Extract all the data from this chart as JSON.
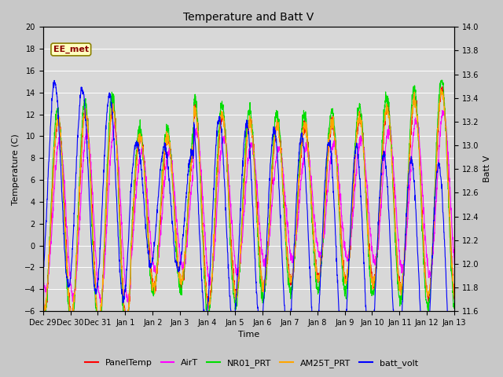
{
  "title": "Temperature and Batt V",
  "xlabel": "Time",
  "ylabel_left": "Temperature (C)",
  "ylabel_right": "Batt V",
  "annotation": "EE_met",
  "annotation_fg": "#8B0000",
  "annotation_bg": "#FFFFC0",
  "annotation_edge": "#8B8000",
  "xlim": [
    0,
    15
  ],
  "ylim_left": [
    -6,
    20
  ],
  "ylim_right": [
    11.6,
    14.0
  ],
  "xtick_labels": [
    "Dec 29",
    "Dec 30",
    "Dec 31",
    "Jan 1",
    "Jan 2",
    "Jan 3",
    "Jan 4",
    "Jan 5",
    "Jan 6",
    "Jan 7",
    "Jan 8",
    "Jan 9",
    "Jan 10",
    "Jan 11",
    "Jan 12",
    "Jan 13"
  ],
  "yticks_left": [
    -6,
    -4,
    -2,
    0,
    2,
    4,
    6,
    8,
    10,
    12,
    14,
    16,
    18,
    20
  ],
  "yticks_right": [
    11.6,
    11.8,
    12.0,
    12.2,
    12.4,
    12.6,
    12.8,
    13.0,
    13.2,
    13.4,
    13.6,
    13.8,
    14.0
  ],
  "legend_entries": [
    {
      "label": "PanelTemp",
      "color": "#FF0000"
    },
    {
      "label": "AirT",
      "color": "#FF00FF"
    },
    {
      "label": "NR01_PRT",
      "color": "#00DD00"
    },
    {
      "label": "AM25T_PRT",
      "color": "#FFA500"
    },
    {
      "label": "batt_volt",
      "color": "#0000FF"
    }
  ],
  "fig_bg": "#C8C8C8",
  "plot_bg": "#D8D8D8",
  "grid_color": "#FFFFFF",
  "linewidth": 0.8,
  "title_fontsize": 10,
  "axis_fontsize": 8,
  "tick_fontsize": 7,
  "legend_fontsize": 8
}
